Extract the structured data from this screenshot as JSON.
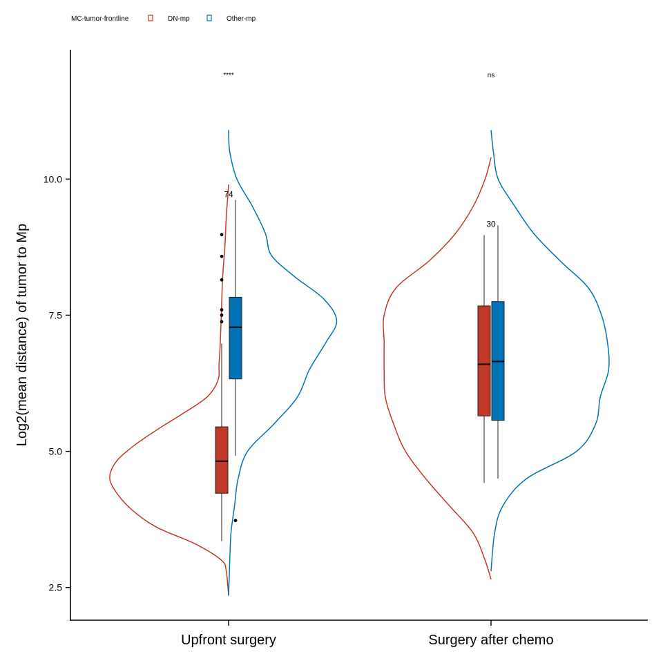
{
  "colors": {
    "dn": "#c0392b",
    "other": "#0072b5",
    "axis": "#000000"
  },
  "legend": {
    "title": "MC-tumor-frontline",
    "items": [
      {
        "label": "DN-mp",
        "color": "#c0392b"
      },
      {
        "label": "Other-mp",
        "color": "#0072b5"
      }
    ],
    "placement": "top-left"
  },
  "chart_data": {
    "type": "violin",
    "ylabel": "Log2(mean distance) of tumor to Mp",
    "xlabel": "",
    "ylim": [
      1.9,
      12.4
    ],
    "yticks": [
      "2.5",
      "5.0",
      "7.5",
      "10.0"
    ],
    "grid": false,
    "categories": [
      "Upfront surgery",
      "Surgery after chemo"
    ],
    "significance": [
      "****",
      "ns"
    ],
    "count_labels": [
      "74",
      "30"
    ],
    "groups": [
      {
        "category": "Upfront surgery",
        "series": [
          {
            "name": "DN-mp",
            "side": "left",
            "box": {
              "min": 3.35,
              "q1": 4.23,
              "median": 4.82,
              "q3": 5.45,
              "max": 6.98
            },
            "outliers": [
              8.98,
              8.58,
              8.15,
              7.6,
              7.5,
              7.38
            ],
            "density": [
              [
                2.35,
                0
              ],
              [
                2.8,
                0.02
              ],
              [
                3.0,
                0.06
              ],
              [
                3.3,
                0.28
              ],
              [
                3.6,
                0.6
              ],
              [
                3.9,
                0.8
              ],
              [
                4.2,
                0.93
              ],
              [
                4.5,
                1.0
              ],
              [
                4.8,
                0.95
              ],
              [
                5.1,
                0.8
              ],
              [
                5.4,
                0.6
              ],
              [
                5.7,
                0.38
              ],
              [
                6.0,
                0.18
              ],
              [
                6.3,
                0.09
              ],
              [
                6.6,
                0.08
              ],
              [
                7.0,
                0.07
              ],
              [
                7.6,
                0.06
              ],
              [
                8.2,
                0.05
              ],
              [
                8.8,
                0.03
              ],
              [
                9.3,
                0.02
              ],
              [
                9.6,
                0.01
              ],
              [
                9.9,
                0
              ]
            ]
          },
          {
            "name": "Other-mp",
            "side": "right",
            "box": {
              "min": 4.92,
              "q1": 6.33,
              "median": 7.28,
              "q3": 7.83,
              "max": 9.62
            },
            "outliers": [
              3.73
            ],
            "density": [
              [
                2.35,
                0
              ],
              [
                3.0,
                0.01
              ],
              [
                3.5,
                0.02
              ],
              [
                4.0,
                0.05
              ],
              [
                4.5,
                0.08
              ],
              [
                5.0,
                0.16
              ],
              [
                5.5,
                0.38
              ],
              [
                6.0,
                0.58
              ],
              [
                6.5,
                0.68
              ],
              [
                7.0,
                0.82
              ],
              [
                7.4,
                0.91
              ],
              [
                7.8,
                0.8
              ],
              [
                8.2,
                0.56
              ],
              [
                8.6,
                0.36
              ],
              [
                9.0,
                0.31
              ],
              [
                9.5,
                0.2
              ],
              [
                10.0,
                0.07
              ],
              [
                10.5,
                0.01
              ],
              [
                10.9,
                0
              ]
            ]
          }
        ]
      },
      {
        "category": "Surgery after chemo",
        "series": [
          {
            "name": "DN-mp",
            "side": "left",
            "box": {
              "min": 4.42,
              "q1": 5.65,
              "median": 6.6,
              "q3": 7.67,
              "max": 8.97
            },
            "outliers": [],
            "density": [
              [
                2.65,
                0
              ],
              [
                3.0,
                0.05
              ],
              [
                3.5,
                0.15
              ],
              [
                4.0,
                0.35
              ],
              [
                4.5,
                0.55
              ],
              [
                5.0,
                0.72
              ],
              [
                5.5,
                0.82
              ],
              [
                6.0,
                0.89
              ],
              [
                6.5,
                0.9
              ],
              [
                7.0,
                0.9
              ],
              [
                7.5,
                0.9
              ],
              [
                8.0,
                0.8
              ],
              [
                8.5,
                0.52
              ],
              [
                9.0,
                0.3
              ],
              [
                9.5,
                0.15
              ],
              [
                10.0,
                0.05
              ],
              [
                10.4,
                0
              ]
            ]
          },
          {
            "name": "Other-mp",
            "side": "right",
            "box": {
              "min": 4.5,
              "q1": 5.57,
              "median": 6.65,
              "q3": 7.75,
              "max": 9.15
            },
            "outliers": [],
            "density": [
              [
                2.8,
                0
              ],
              [
                3.5,
                0.03
              ],
              [
                4.0,
                0.1
              ],
              [
                4.5,
                0.3
              ],
              [
                5.0,
                0.72
              ],
              [
                5.5,
                0.88
              ],
              [
                6.0,
                0.92
              ],
              [
                6.5,
                0.99
              ],
              [
                7.0,
                0.98
              ],
              [
                7.5,
                0.93
              ],
              [
                8.0,
                0.82
              ],
              [
                8.5,
                0.58
              ],
              [
                9.0,
                0.36
              ],
              [
                9.5,
                0.2
              ],
              [
                10.0,
                0.06
              ],
              [
                10.5,
                0.02
              ],
              [
                10.9,
                0
              ]
            ]
          }
        ]
      }
    ]
  }
}
